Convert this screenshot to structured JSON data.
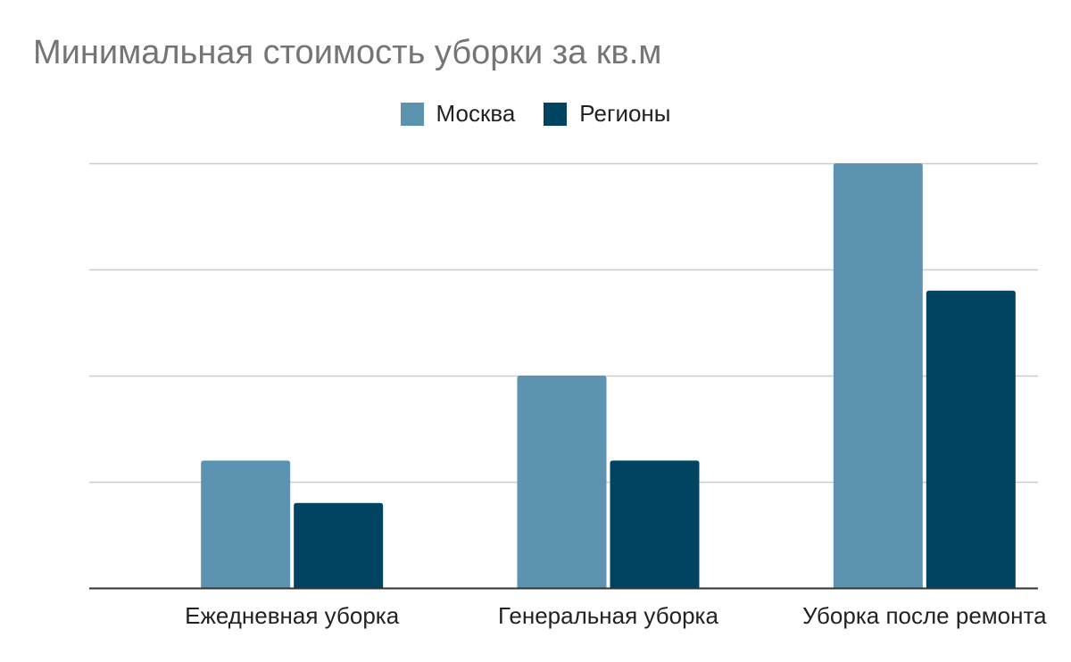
{
  "chart_data": {
    "type": "bar",
    "title": "Минимальная стоимость уборки за кв.м",
    "categories": [
      "Ежедневная уборка",
      "Генеральная уборка",
      "Уборка после ремонта"
    ],
    "series": [
      {
        "name": "Москва",
        "color": "#5b93b1",
        "values": [
          60,
          100,
          200
        ]
      },
      {
        "name": "Регионы",
        "color": "#004461",
        "values": [
          40,
          60,
          140
        ]
      }
    ],
    "ylim": [
      0,
      200
    ],
    "yticks": [
      0,
      50,
      100,
      150,
      200
    ],
    "ytick_labels_shown": false,
    "grid": true,
    "legend_position": "top-center",
    "xlabel": "",
    "ylabel": ""
  }
}
